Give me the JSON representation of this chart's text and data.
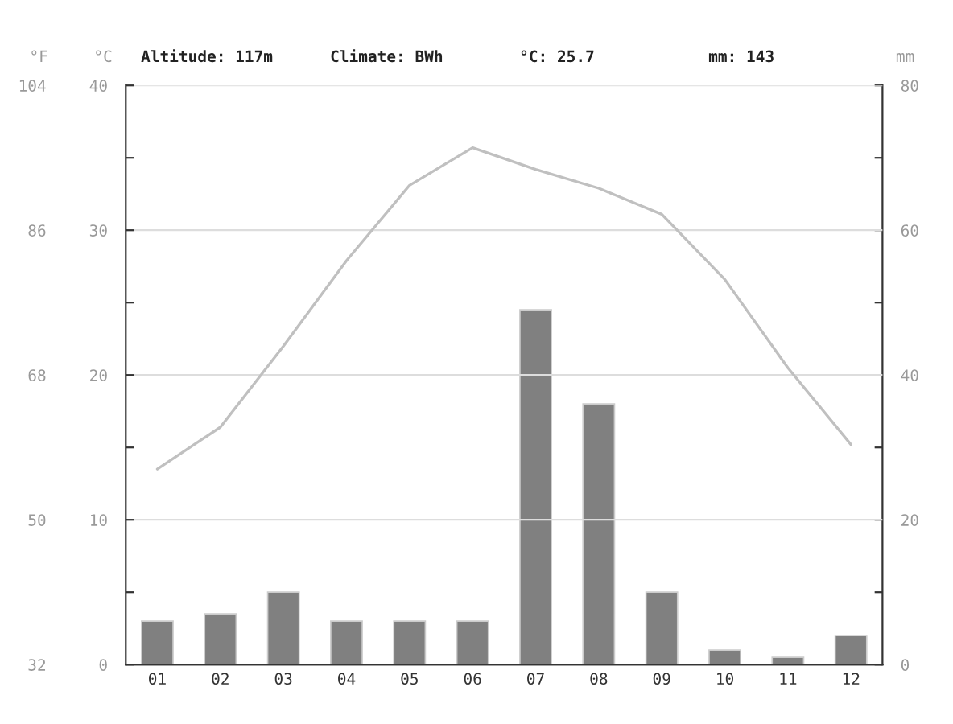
{
  "chart_data": {
    "type": "bar",
    "categories": [
      "01",
      "02",
      "03",
      "04",
      "05",
      "06",
      "07",
      "08",
      "09",
      "10",
      "11",
      "12"
    ],
    "series": [
      {
        "axis": "y2",
        "color": "#808080",
        "values": [
          6,
          7,
          10,
          6,
          6,
          6,
          49,
          36,
          10,
          2,
          1,
          4
        ]
      },
      {
        "type": "line",
        "axis": "y",
        "color": "#c0c0c0",
        "values": [
          13.5,
          16.4,
          22.0,
          27.9,
          33.1,
          35.7,
          34.2,
          32.9,
          31.1,
          26.6,
          20.5,
          15.2
        ]
      }
    ],
    "ylabel": "°C",
    "y2label": "mm",
    "y3label": "°F",
    "ylim": [
      0,
      40
    ],
    "yticks": [
      0,
      {
        "value": 5,
        "label": null
      },
      10,
      {
        "value": 15,
        "label": null
      },
      20,
      {
        "value": 25,
        "label": null
      },
      30,
      {
        "value": 35,
        "label": null
      },
      40
    ],
    "y2lim": [
      0,
      80
    ],
    "y2ticks": [
      0,
      {
        "value": 10,
        "label": null
      },
      20,
      {
        "value": 30,
        "label": null
      },
      40,
      {
        "value": 50,
        "label": null
      },
      60,
      {
        "value": 70,
        "label": null
      },
      80
    ],
    "y3lim": [
      32,
      104
    ],
    "y3ticks": [
      32,
      50,
      68,
      86,
      104
    ],
    "annotations": [
      "Altitude: 117m",
      "Climate: BWh",
      "°C: 25.7",
      "mm: 143"
    ],
    "grid": "y",
    "legend": false,
    "line_style": "solid",
    "marker": "none"
  }
}
